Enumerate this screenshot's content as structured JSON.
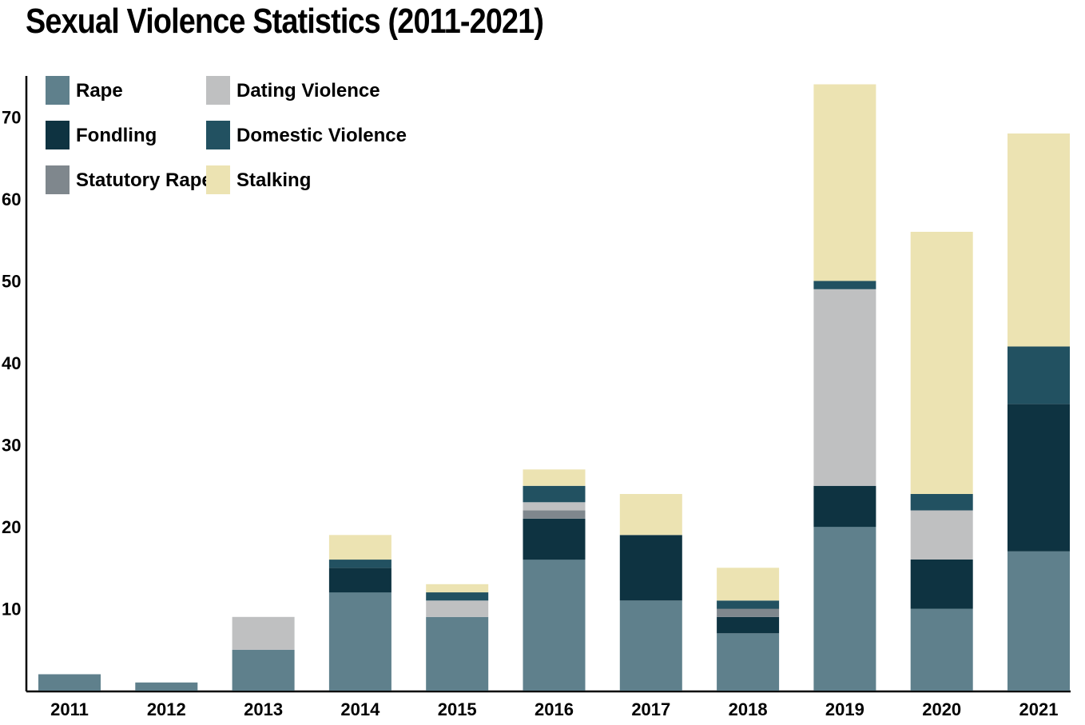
{
  "chart_data": {
    "type": "bar",
    "stacked": true,
    "title": "Sexual Violence Statistics (2011-2021)",
    "xlabel": "",
    "ylabel": "",
    "ylim": [
      0,
      75
    ],
    "yticks": [
      10,
      20,
      30,
      40,
      50,
      60,
      70
    ],
    "grid": false,
    "legend_position": "top-left",
    "categories": [
      "2011",
      "2012",
      "2013",
      "2014",
      "2015",
      "2016",
      "2017",
      "2018",
      "2019",
      "2020",
      "2021"
    ],
    "series": [
      {
        "name": "Rape",
        "color": "#5f808c",
        "values": [
          2,
          1,
          5,
          12,
          9,
          16,
          11,
          7,
          20,
          10,
          17
        ]
      },
      {
        "name": "Fondling",
        "color": "#0e3341",
        "values": [
          0,
          0,
          0,
          3,
          0,
          5,
          8,
          2,
          5,
          6,
          18
        ]
      },
      {
        "name": "Statutory Rape",
        "color": "#7f878d",
        "values": [
          0,
          0,
          0,
          0,
          0,
          1,
          0,
          1,
          0,
          0,
          0
        ]
      },
      {
        "name": "Dating Violence",
        "color": "#bfc0c1",
        "values": [
          0,
          0,
          4,
          0,
          2,
          1,
          0,
          0,
          24,
          6,
          0
        ]
      },
      {
        "name": "Domestic Violence",
        "color": "#225161",
        "values": [
          0,
          0,
          0,
          1,
          1,
          2,
          0,
          1,
          1,
          2,
          7
        ]
      },
      {
        "name": "Stalking",
        "color": "#ece3b2",
        "values": [
          0,
          0,
          0,
          3,
          1,
          2,
          5,
          4,
          24,
          32,
          26
        ]
      }
    ]
  }
}
